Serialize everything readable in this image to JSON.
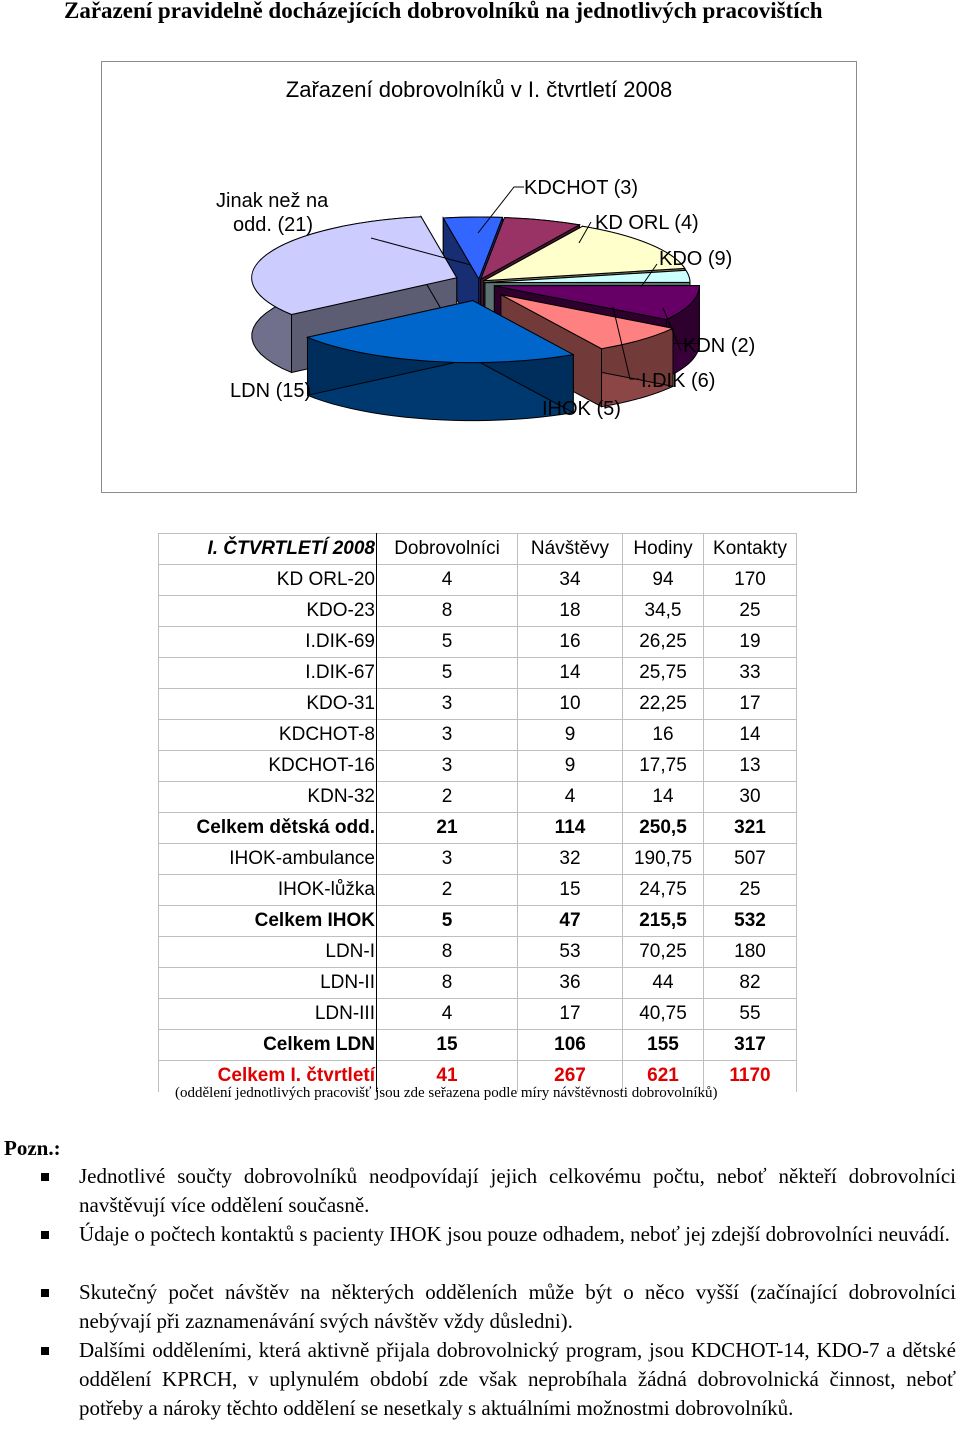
{
  "heading": "Zařazení pravidelně docházejících dobrovolníků na jednotlivých pracovištích",
  "chart_data": {
    "type": "pie",
    "title": "Zařazení dobrovolníků v I. čtvrtletí 2008",
    "categories": [
      "KDCHOT (3)",
      "KD ORL (4)",
      "KDO (9)",
      "KDN (2)",
      "I.DIK (6)",
      "IHOK (5)",
      "LDN (15)",
      "Jinak než na odd. (21)"
    ],
    "values": [
      3,
      4,
      9,
      2,
      6,
      5,
      15,
      21
    ],
    "labels": {
      "kdchot": "KDCHOT (3)",
      "kdorl": "KD ORL (4)",
      "kdo": "KDO (9)",
      "kdn": "KDN (2)",
      "idik": "I.DIK (6)",
      "ihok": "IHOK (5)",
      "ldn": "LDN (15)",
      "jinak_line1": "Jinak než na",
      "jinak_line2": "odd. (21)"
    },
    "colors": [
      "#3366ff",
      "#993366",
      "#ffffcc",
      "#ccffff",
      "#660066",
      "#ff8080",
      "#0066cc",
      "#ccccff"
    ],
    "style": "3d-exploded"
  },
  "table": {
    "header": [
      "I. ČTVRTLETÍ 2008",
      "Dobrovolníci",
      "Návštěvy",
      "Hodiny",
      "Kontakty"
    ],
    "rows": [
      {
        "label": "KD ORL-20",
        "v": [
          "4",
          "34",
          "94",
          "170"
        ],
        "style": ""
      },
      {
        "label": "KDO-23",
        "v": [
          "8",
          "18",
          "34,5",
          "25"
        ],
        "style": ""
      },
      {
        "label": "I.DIK-69",
        "v": [
          "5",
          "16",
          "26,25",
          "19"
        ],
        "style": ""
      },
      {
        "label": "I.DIK-67",
        "v": [
          "5",
          "14",
          "25,75",
          "33"
        ],
        "style": ""
      },
      {
        "label": "KDO-31",
        "v": [
          "3",
          "10",
          "22,25",
          "17"
        ],
        "style": ""
      },
      {
        "label": "KDCHOT-8",
        "v": [
          "3",
          "9",
          "16",
          "14"
        ],
        "style": ""
      },
      {
        "label": "KDCHOT-16",
        "v": [
          "3",
          "9",
          "17,75",
          "13"
        ],
        "style": ""
      },
      {
        "label": "KDN-32",
        "v": [
          "2",
          "4",
          "14",
          "30"
        ],
        "style": ""
      },
      {
        "label": "Celkem dětská odd.",
        "v": [
          "21",
          "114",
          "250,5",
          "321"
        ],
        "style": "bold"
      },
      {
        "label": "IHOK-ambulance",
        "v": [
          "3",
          "32",
          "190,75",
          "507"
        ],
        "style": ""
      },
      {
        "label": "IHOK-lůžka",
        "v": [
          "2",
          "15",
          "24,75",
          "25"
        ],
        "style": ""
      },
      {
        "label": "Celkem IHOK",
        "v": [
          "5",
          "47",
          "215,5",
          "532"
        ],
        "style": "bold"
      },
      {
        "label": "LDN-I",
        "v": [
          "8",
          "53",
          "70,25",
          "180"
        ],
        "style": ""
      },
      {
        "label": "LDN-II",
        "v": [
          "8",
          "36",
          "44",
          "82"
        ],
        "style": ""
      },
      {
        "label": "LDN-III",
        "v": [
          "4",
          "17",
          "40,75",
          "55"
        ],
        "style": ""
      },
      {
        "label": "Celkem LDN",
        "v": [
          "15",
          "106",
          "155",
          "317"
        ],
        "style": "bold"
      },
      {
        "label": "Celkem I. čtvrtletí",
        "v": [
          "41",
          "267",
          "621",
          "1170"
        ],
        "style": "red"
      }
    ],
    "note": "(oddělení jednotlivých pracovišť jsou zde seřazena podle míry návštěvnosti dobrovolníků)"
  },
  "notes": {
    "title": "Pozn.:",
    "items": [
      "Jednotlivé součty dobrovolníků neodpovídají jejich celkovému počtu, neboť někteří dobrovolníci navštěvují více oddělení současně.",
      "Údaje o počtech kontaktů s pacienty IHOK jsou pouze odhadem, neboť jej zdejší dobrovolníci neuvádí.",
      "Skutečný počet návštěv na některých odděleních může být o něco vyšší (začínající dobrovolníci nebývají při zaznamenávání svých návštěv vždy důsledni).",
      "Dalšími odděleními, která aktivně přijala dobrovolnický program, jsou KDCHOT-14, KDO-7 a dětské oddělení KPRCH, v uplynulém období zde však neprobíhala žádná dobrovolnická činnost, neboť potřeby a nároky těchto oddělení se nesetkaly s aktuálními možnostmi dobrovolníků."
    ]
  }
}
